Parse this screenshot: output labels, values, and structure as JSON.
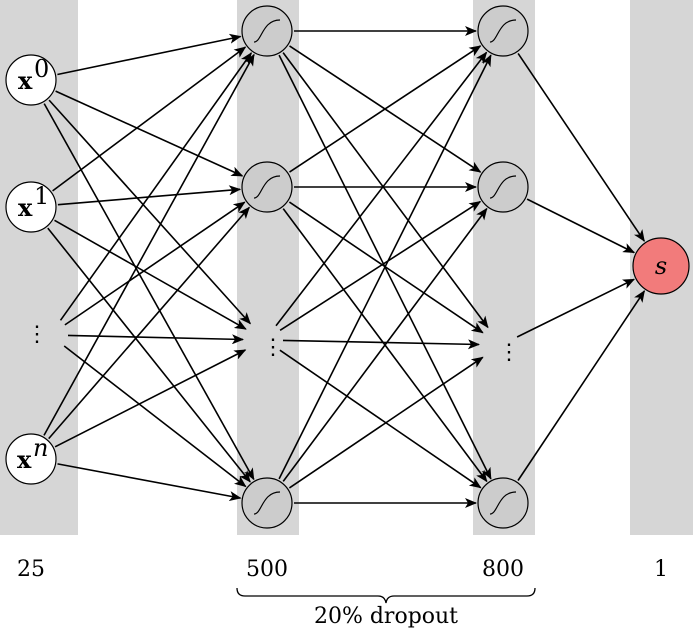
{
  "input_layer": {
    "nodes": [
      {
        "base": "x",
        "sup": "0"
      },
      {
        "base": "x",
        "sup": "1"
      },
      {
        "base": "x",
        "sup": "n"
      }
    ],
    "size_label": "25"
  },
  "hidden_layer_1": {
    "size_label": "500"
  },
  "hidden_layer_2": {
    "size_label": "800"
  },
  "output_layer": {
    "node_label": "s",
    "size_label": "1"
  },
  "dropout_label": "20% dropout",
  "colors": {
    "band": "#d6d6d6",
    "hidden_node": "#cccccc",
    "output_node": "#f27b7b"
  },
  "icons": {
    "hidden_node": "sigmoid-icon"
  }
}
